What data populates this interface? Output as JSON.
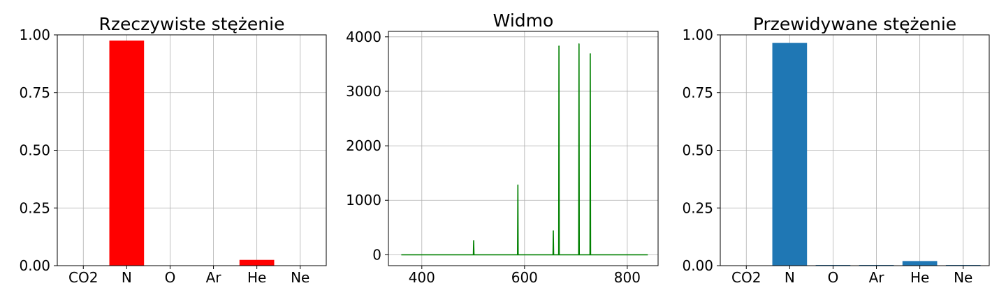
{
  "chart_data": [
    {
      "type": "bar",
      "title": "Rzeczywiste stężenie",
      "categories": [
        "CO2",
        "N",
        "O",
        "Ar",
        "He",
        "Ne"
      ],
      "values": [
        0.0,
        0.975,
        0.0,
        0.0,
        0.025,
        0.0
      ],
      "color": "#ff0000",
      "ylim": [
        0,
        1.0
      ],
      "yticks": [
        0.0,
        0.25,
        0.5,
        0.75,
        1.0
      ],
      "ytick_labels": [
        "0.00",
        "0.25",
        "0.50",
        "0.75",
        "1.00"
      ],
      "grid": true
    },
    {
      "type": "line",
      "title": "Widmo",
      "color": "#008000",
      "xlim": [
        335,
        860
      ],
      "ylim": [
        -200,
        4100
      ],
      "xticks": [
        400,
        600,
        800
      ],
      "xtick_labels": [
        "400",
        "600",
        "800"
      ],
      "yticks": [
        0,
        1000,
        2000,
        3000,
        4000
      ],
      "ytick_labels": [
        "0",
        "1000",
        "2000",
        "3000",
        "4000"
      ],
      "grid": true,
      "baseline": {
        "x_start": 360,
        "x_end": 840,
        "y": 0
      },
      "peaks": [
        {
          "x": 501,
          "y": 260
        },
        {
          "x": 587,
          "y": 1280
        },
        {
          "x": 656,
          "y": 440
        },
        {
          "x": 667,
          "y": 3830
        },
        {
          "x": 706,
          "y": 3870
        },
        {
          "x": 728,
          "y": 3690
        }
      ]
    },
    {
      "type": "bar",
      "title": "Przewidywane stężenie",
      "categories": [
        "CO2",
        "N",
        "O",
        "Ar",
        "He",
        "Ne"
      ],
      "values": [
        0.0,
        0.965,
        0.003,
        0.003,
        0.02,
        0.003
      ],
      "color": "#1f77b4",
      "ylim": [
        0,
        1.0
      ],
      "yticks": [
        0.0,
        0.25,
        0.5,
        0.75,
        1.0
      ],
      "ytick_labels": [
        "0.00",
        "0.25",
        "0.50",
        "0.75",
        "1.00"
      ],
      "grid": true
    }
  ]
}
